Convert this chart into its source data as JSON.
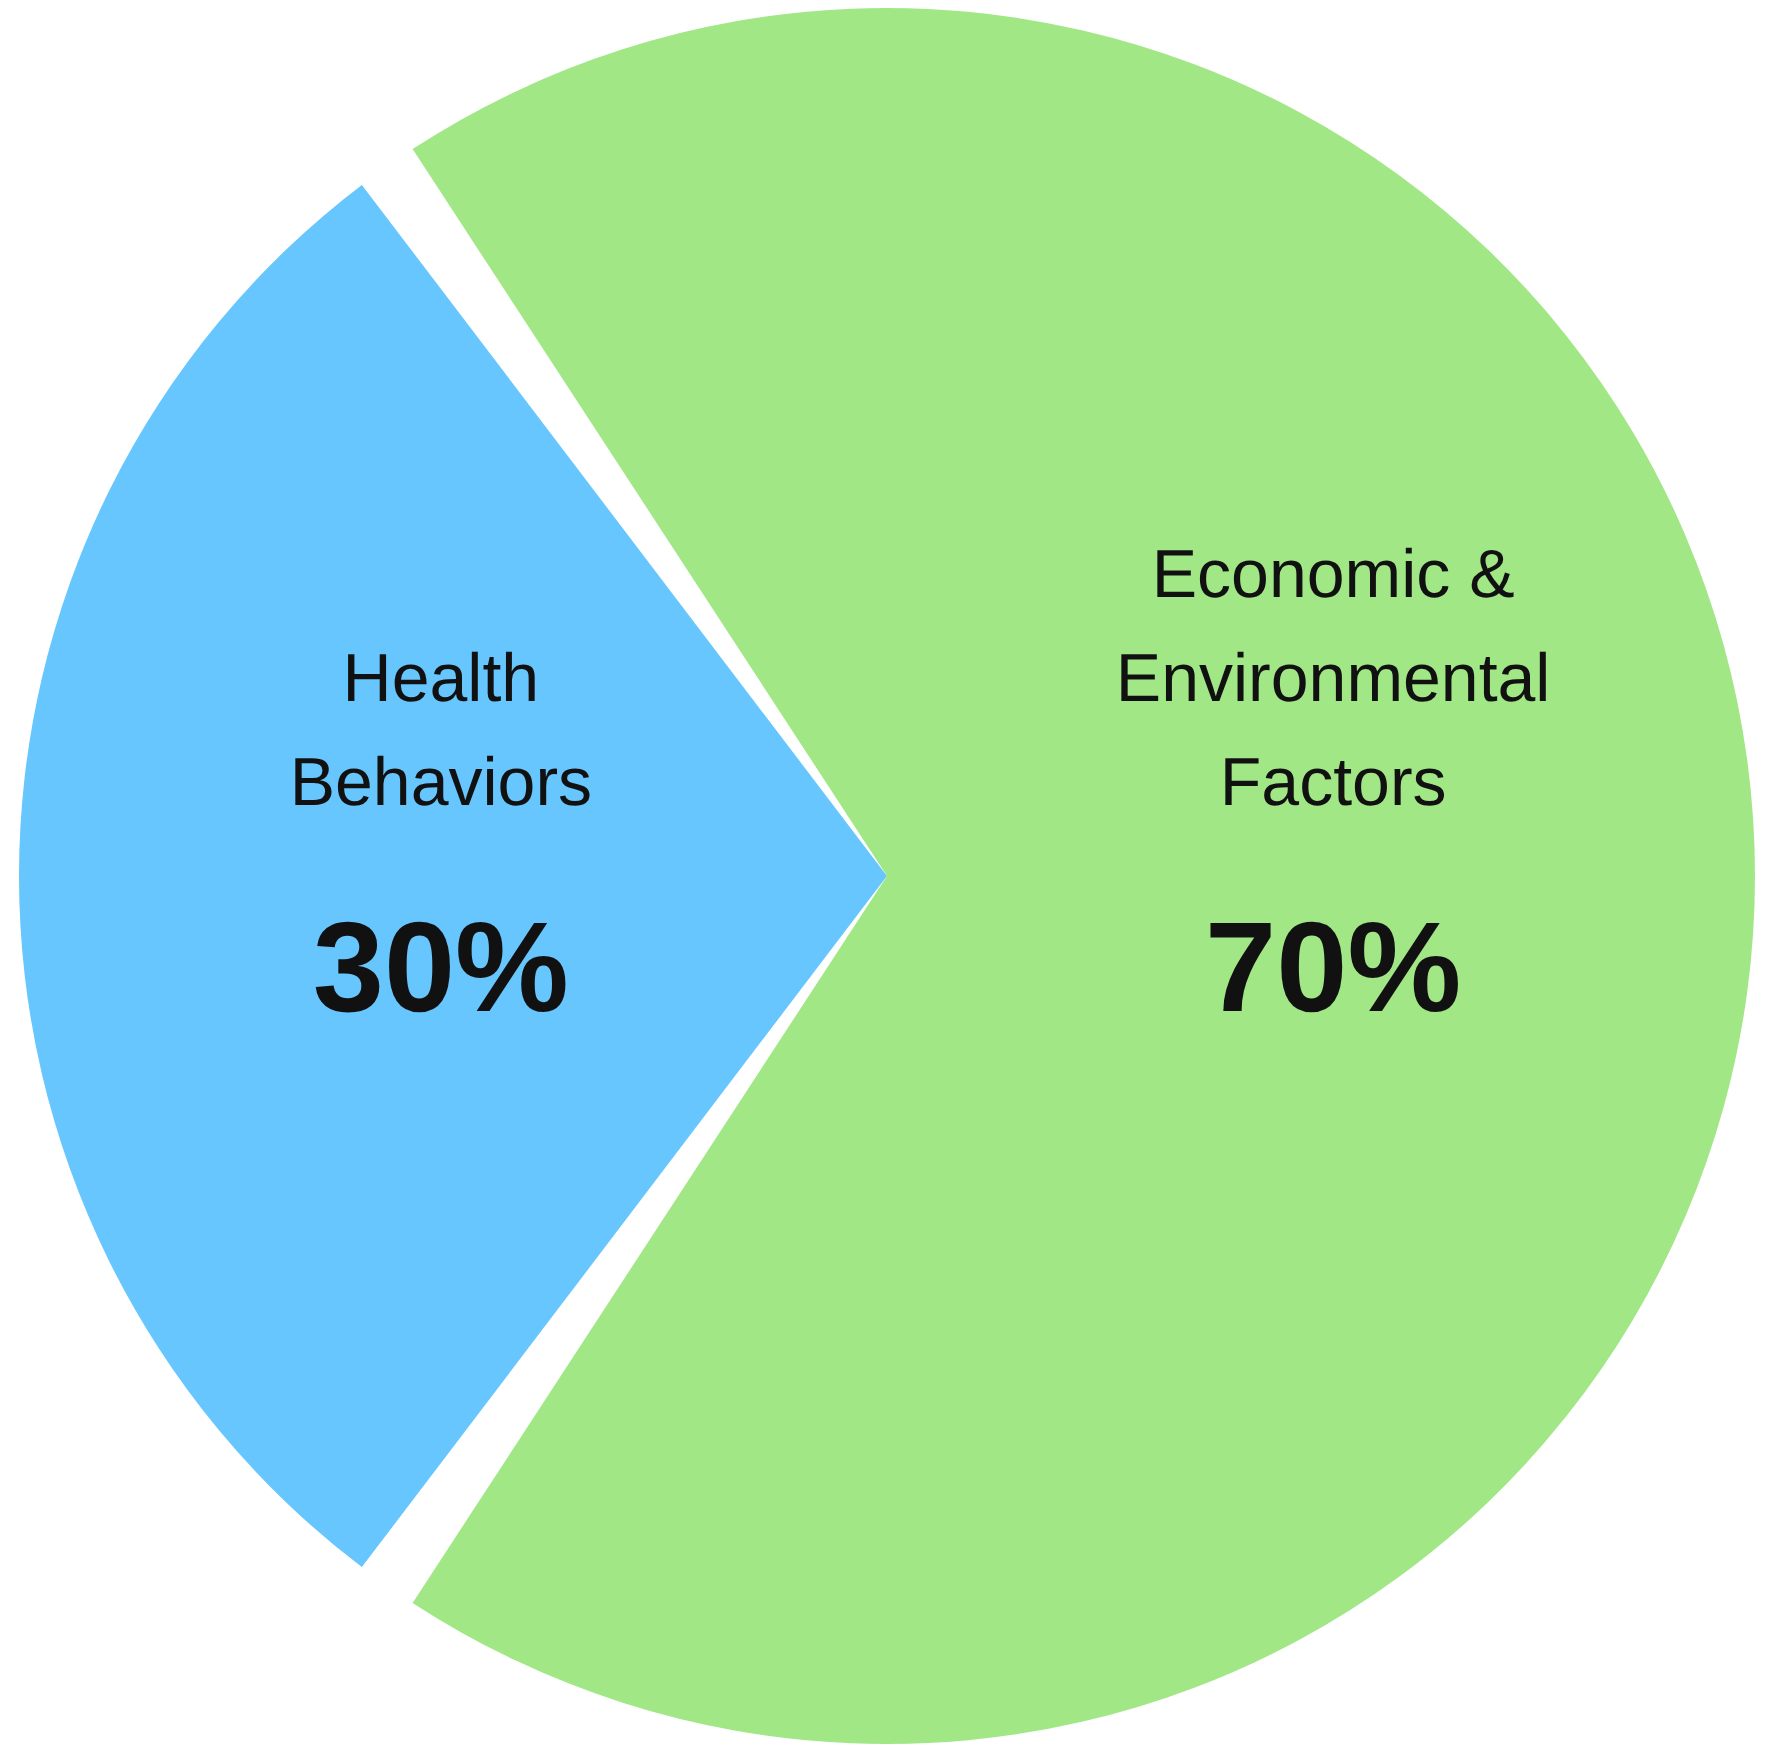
{
  "chart_data": {
    "type": "pie",
    "categories": [
      "Health Behaviors",
      "Economic & Environmental Factors"
    ],
    "values": [
      30,
      70
    ],
    "colors": [
      "#66c6fd",
      "#a1e786"
    ],
    "value_labels": [
      "30%",
      "70%"
    ],
    "legend": false
  }
}
